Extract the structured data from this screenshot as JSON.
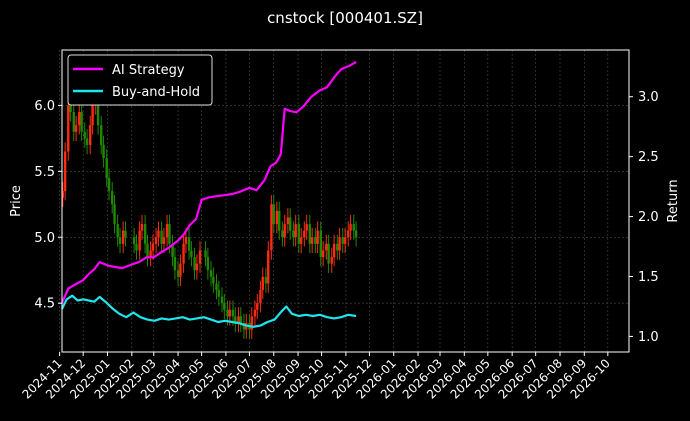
{
  "chart_data": {
    "type": "line",
    "title": "cnstock [000401.SZ]",
    "xlabel": "",
    "ylabel": "Price",
    "y2label": "Return",
    "x_ticks": [
      "2024-11",
      "2024-12",
      "2025-01",
      "2025-02",
      "2025-03",
      "2025-04",
      "2025-05",
      "2025-06",
      "2025-07",
      "2025-08",
      "2025-09",
      "2025-10",
      "2025-11",
      "2025-12",
      "2026-01",
      "2026-02",
      "2026-03",
      "2026-04",
      "2026-05",
      "2026-06",
      "2026-07",
      "2026-08",
      "2026-09",
      "2026-10"
    ],
    "xlim": [
      "2024-11-04",
      "2026-10-28"
    ],
    "ylim": [
      4.13,
      6.42
    ],
    "y_ticks": [
      4.5,
      5.0,
      5.5,
      6.0
    ],
    "y_tick_labels": [
      "4.5",
      "5.0",
      "5.5",
      "6.0"
    ],
    "y2lim": [
      0.87,
      3.39
    ],
    "y2_ticks": [
      1.0,
      1.5,
      2.0,
      2.5,
      3.0
    ],
    "y2_tick_labels": [
      "1.0",
      "1.5",
      "2.0",
      "2.5",
      "3.0"
    ],
    "grid": true,
    "legend_position": "top-left",
    "colors": {
      "up": "#ff2a12",
      "down": "#1f8a00",
      "strategy": "#ff00ff",
      "hold": "#1fe5ee",
      "background": "#000000",
      "grid": "#4a4a4a"
    },
    "series": [
      {
        "name": "AI Strategy",
        "axis": "right",
        "x": [
          "2024-11-04",
          "2024-11-12",
          "2024-11-20",
          "2024-12-01",
          "2024-12-08",
          "2024-12-15",
          "2024-12-22",
          "2025-01-02",
          "2025-01-10",
          "2025-01-20",
          "2025-02-01",
          "2025-02-10",
          "2025-02-20",
          "2025-03-01",
          "2025-03-10",
          "2025-03-20",
          "2025-04-01",
          "2025-04-08",
          "2025-04-16",
          "2025-04-24",
          "2025-05-01",
          "2025-05-10",
          "2025-05-20",
          "2025-06-01",
          "2025-06-10",
          "2025-06-20",
          "2025-07-01",
          "2025-07-10",
          "2025-07-20",
          "2025-07-28",
          "2025-08-04",
          "2025-08-10",
          "2025-08-15",
          "2025-08-22",
          "2025-08-30",
          "2025-09-08",
          "2025-09-18",
          "2025-09-28",
          "2025-10-08",
          "2025-10-18",
          "2025-10-26",
          "2025-11-06",
          "2025-11-14"
        ],
        "values": [
          1.28,
          1.4,
          1.43,
          1.47,
          1.52,
          1.56,
          1.62,
          1.59,
          1.58,
          1.57,
          1.6,
          1.62,
          1.66,
          1.66,
          1.7,
          1.74,
          1.8,
          1.85,
          1.93,
          1.98,
          2.14,
          2.16,
          2.17,
          2.18,
          2.19,
          2.21,
          2.24,
          2.22,
          2.3,
          2.42,
          2.45,
          2.52,
          2.9,
          2.88,
          2.87,
          2.92,
          3.0,
          3.05,
          3.08,
          3.17,
          3.23,
          3.26,
          3.29
        ]
      },
      {
        "name": "Buy-and-Hold",
        "axis": "right",
        "x": [
          "2024-11-04",
          "2024-11-10",
          "2024-11-17",
          "2024-11-24",
          "2024-12-01",
          "2024-12-08",
          "2024-12-15",
          "2024-12-22",
          "2024-12-31",
          "2025-01-08",
          "2025-01-16",
          "2025-01-25",
          "2025-02-03",
          "2025-02-12",
          "2025-02-21",
          "2025-03-02",
          "2025-03-11",
          "2025-03-20",
          "2025-03-29",
          "2025-04-07",
          "2025-04-16",
          "2025-04-25",
          "2025-05-04",
          "2025-05-13",
          "2025-05-22",
          "2025-05-31",
          "2025-06-09",
          "2025-06-18",
          "2025-06-27",
          "2025-07-06",
          "2025-07-15",
          "2025-07-24",
          "2025-08-02",
          "2025-08-11",
          "2025-08-17",
          "2025-08-24",
          "2025-09-02",
          "2025-09-11",
          "2025-09-20",
          "2025-09-29",
          "2025-10-08",
          "2025-10-17",
          "2025-10-26",
          "2025-11-04",
          "2025-11-14"
        ],
        "values": [
          1.23,
          1.31,
          1.34,
          1.3,
          1.31,
          1.3,
          1.29,
          1.33,
          1.28,
          1.23,
          1.19,
          1.16,
          1.2,
          1.16,
          1.14,
          1.13,
          1.15,
          1.14,
          1.15,
          1.16,
          1.14,
          1.15,
          1.16,
          1.14,
          1.12,
          1.13,
          1.12,
          1.11,
          1.09,
          1.08,
          1.09,
          1.12,
          1.14,
          1.21,
          1.25,
          1.19,
          1.17,
          1.18,
          1.17,
          1.18,
          1.16,
          1.15,
          1.16,
          1.18,
          1.17
        ]
      },
      {
        "name": "",
        "axis": "left",
        "type": "candlestick",
        "x": [
          "2024-11-05",
          "2024-11-08",
          "2024-11-12",
          "2024-11-15",
          "2024-11-19",
          "2024-11-22",
          "2024-11-26",
          "2024-11-29",
          "2024-12-03",
          "2024-12-06",
          "2024-12-10",
          "2024-12-13",
          "2024-12-17",
          "2024-12-20",
          "2024-12-24",
          "2024-12-27",
          "2024-12-31",
          "2025-01-03",
          "2025-01-07",
          "2025-01-10",
          "2025-01-14",
          "2025-01-17",
          "2025-01-21",
          "2025-01-24",
          "2025-02-04",
          "2025-02-07",
          "2025-02-11",
          "2025-02-14",
          "2025-02-18",
          "2025-02-21",
          "2025-02-25",
          "2025-02-28",
          "2025-03-04",
          "2025-03-07",
          "2025-03-11",
          "2025-03-14",
          "2025-03-18",
          "2025-03-21",
          "2025-03-25",
          "2025-03-28",
          "2025-04-01",
          "2025-04-04",
          "2025-04-08",
          "2025-04-11",
          "2025-04-15",
          "2025-04-18",
          "2025-04-22",
          "2025-04-25",
          "2025-04-29",
          "2025-05-06",
          "2025-05-09",
          "2025-05-13",
          "2025-05-16",
          "2025-05-20",
          "2025-05-23",
          "2025-05-27",
          "2025-05-30",
          "2025-06-03",
          "2025-06-06",
          "2025-06-10",
          "2025-06-13",
          "2025-06-17",
          "2025-06-20",
          "2025-06-24",
          "2025-06-27",
          "2025-07-01",
          "2025-07-04",
          "2025-07-08",
          "2025-07-11",
          "2025-07-15",
          "2025-07-18",
          "2025-07-22",
          "2025-07-25",
          "2025-07-29",
          "2025-08-01",
          "2025-08-05",
          "2025-08-08",
          "2025-08-12",
          "2025-08-15",
          "2025-08-19",
          "2025-08-22",
          "2025-08-26",
          "2025-08-29",
          "2025-09-02",
          "2025-09-05",
          "2025-09-09",
          "2025-09-12",
          "2025-09-16",
          "2025-09-19",
          "2025-09-23",
          "2025-09-26",
          "2025-09-30",
          "2025-10-03",
          "2025-10-07",
          "2025-10-10",
          "2025-10-14",
          "2025-10-17",
          "2025-10-21",
          "2025-10-24",
          "2025-10-28",
          "2025-10-31",
          "2025-11-04",
          "2025-11-07",
          "2025-11-11",
          "2025-11-14"
        ],
        "close": [
          5.35,
          5.65,
          6.0,
          5.95,
          5.8,
          5.85,
          5.95,
          5.8,
          5.75,
          5.7,
          5.85,
          6.0,
          6.1,
          5.85,
          5.7,
          5.6,
          5.45,
          5.35,
          5.25,
          5.1,
          5.0,
          4.95,
          5.05,
          5.0,
          4.95,
          4.9,
          5.05,
          5.1,
          4.95,
          4.85,
          4.9,
          4.95,
          5.0,
          5.05,
          4.95,
          5.0,
          5.1,
          4.95,
          4.85,
          4.75,
          4.7,
          4.8,
          4.95,
          5.0,
          4.9,
          4.85,
          4.75,
          4.8,
          4.9,
          4.85,
          4.75,
          4.7,
          4.65,
          4.6,
          4.55,
          4.5,
          4.45,
          4.4,
          4.45,
          4.4,
          4.35,
          4.4,
          4.35,
          4.3,
          4.35,
          4.3,
          4.4,
          4.45,
          4.5,
          4.6,
          4.7,
          4.65,
          4.9,
          5.25,
          5.1,
          5.2,
          5.05,
          5.0,
          5.1,
          5.15,
          5.05,
          5.0,
          5.1,
          4.95,
          5.0,
          5.05,
          5.1,
          4.95,
          5.0,
          4.95,
          5.05,
          4.85,
          4.9,
          4.95,
          4.8,
          4.85,
          4.95,
          4.9,
          5.0,
          4.95,
          5.0,
          5.05,
          5.1,
          5.05,
          5.0
        ]
      }
    ]
  }
}
